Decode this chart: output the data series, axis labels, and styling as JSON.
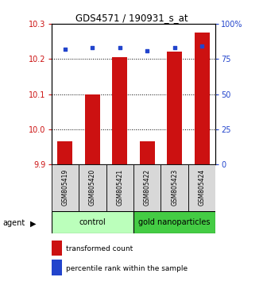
{
  "title": "GDS4571 / 190931_s_at",
  "samples": [
    "GSM805419",
    "GSM805420",
    "GSM805421",
    "GSM805422",
    "GSM805423",
    "GSM805424"
  ],
  "bar_values": [
    9.965,
    10.1,
    10.205,
    9.965,
    10.22,
    10.275
  ],
  "percentile_values": [
    82,
    83,
    83,
    81,
    83,
    84
  ],
  "ylim_left": [
    9.9,
    10.3
  ],
  "ylim_right": [
    0,
    100
  ],
  "yticks_left": [
    9.9,
    10.0,
    10.1,
    10.2,
    10.3
  ],
  "yticks_right": [
    0,
    25,
    50,
    75,
    100
  ],
  "ytick_labels_right": [
    "0",
    "25",
    "50",
    "75",
    "100%"
  ],
  "bar_color": "#cc1111",
  "dot_color": "#2244cc",
  "bar_width": 0.55,
  "group_control_color": "#bbffbb",
  "group_nano_color": "#44cc44",
  "group_labels": [
    "control",
    "gold nanoparticles"
  ],
  "group_ranges": [
    [
      0,
      2
    ],
    [
      3,
      5
    ]
  ],
  "agent_label": "agent",
  "legend_red_label": "transformed count",
  "legend_blue_label": "percentile rank within the sample",
  "left_axis_color": "#cc1111",
  "right_axis_color": "#2244cc",
  "title_fontsize": 8.5,
  "tick_fontsize": 7,
  "sample_fontsize": 5.5,
  "group_fontsize": 7,
  "legend_fontsize": 6.5,
  "agent_fontsize": 7
}
